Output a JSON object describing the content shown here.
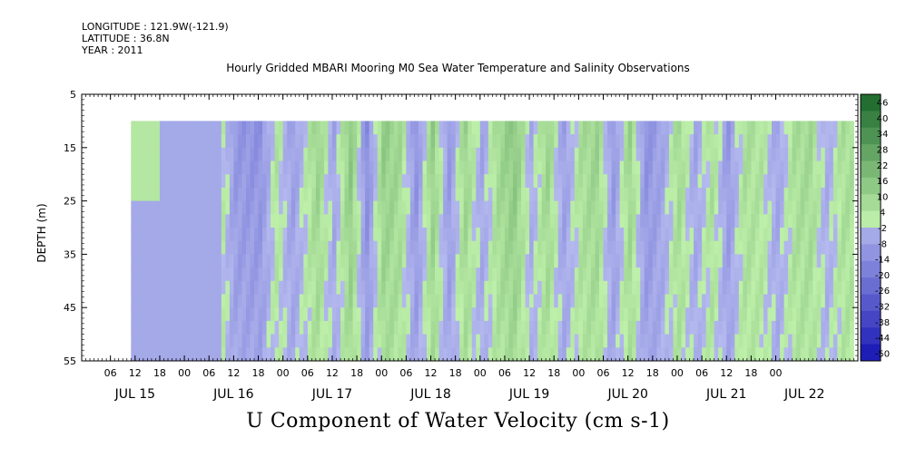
{
  "header": {
    "longitude": "LONGITUDE : 121.9W(-121.9)",
    "latitude": "LATITUDE : 36.8N",
    "year": "YEAR : 2011"
  },
  "chart_data": {
    "type": "heatmap",
    "title": "Hourly Gridded MBARI Mooring M0 Sea Water Temperature and Salinity Observations",
    "xlabel": "U Component of Water Velocity (cm s-1)",
    "ylabel": "DEPTH (m)",
    "xlim_hours": [
      -1,
      188
    ],
    "data_start_hours": [
      11,
      187
    ],
    "ylim": [
      5,
      55
    ],
    "depth_ticks": [
      5,
      15,
      25,
      35,
      45,
      55
    ],
    "data_depth_range": [
      10,
      55
    ],
    "hour_ticks": [
      {
        "hour": 6,
        "label": "06"
      },
      {
        "hour": 12,
        "label": "12"
      },
      {
        "hour": 18,
        "label": "18"
      },
      {
        "hour": 24,
        "label": "00"
      },
      {
        "hour": 30,
        "label": "06"
      },
      {
        "hour": 36,
        "label": "12"
      },
      {
        "hour": 42,
        "label": "18"
      },
      {
        "hour": 48,
        "label": "00"
      },
      {
        "hour": 54,
        "label": "06"
      },
      {
        "hour": 60,
        "label": "12"
      },
      {
        "hour": 66,
        "label": "18"
      },
      {
        "hour": 72,
        "label": "00"
      },
      {
        "hour": 78,
        "label": "06"
      },
      {
        "hour": 84,
        "label": "12"
      },
      {
        "hour": 90,
        "label": "18"
      },
      {
        "hour": 96,
        "label": "00"
      },
      {
        "hour": 102,
        "label": "06"
      },
      {
        "hour": 108,
        "label": "12"
      },
      {
        "hour": 114,
        "label": "18"
      },
      {
        "hour": 120,
        "label": "00"
      },
      {
        "hour": 126,
        "label": "06"
      },
      {
        "hour": 132,
        "label": "12"
      },
      {
        "hour": 138,
        "label": "18"
      },
      {
        "hour": 144,
        "label": "00"
      },
      {
        "hour": 150,
        "label": "06"
      },
      {
        "hour": 156,
        "label": "12"
      },
      {
        "hour": 162,
        "label": "18"
      },
      {
        "hour": 168,
        "label": "00"
      }
    ],
    "date_labels": [
      {
        "hour": 12,
        "label": "JUL 15"
      },
      {
        "hour": 36,
        "label": "JUL 16"
      },
      {
        "hour": 60,
        "label": "JUL 17"
      },
      {
        "hour": 84,
        "label": "JUL 18"
      },
      {
        "hour": 108,
        "label": "JUL 19"
      },
      {
        "hour": 132,
        "label": "JUL 20"
      },
      {
        "hour": 156,
        "label": "JUL 21"
      },
      {
        "hour": 175,
        "label": "JUL 22"
      }
    ],
    "colorbar": {
      "levels": [
        -50,
        -44,
        -38,
        -32,
        -26,
        -20,
        -14,
        -8,
        -2,
        4,
        10,
        16,
        22,
        28,
        34,
        40,
        46
      ],
      "labels": [
        "46",
        "40",
        "34",
        "28",
        "22",
        "16",
        "10",
        "4",
        "-2",
        "-8",
        "-14",
        "-20",
        "-26",
        "-32",
        "-38",
        "-44",
        "-50"
      ],
      "negative_color": "#2222bb",
      "positive_color": "#11aa33",
      "neutral_color": "#dcefc8"
    },
    "velocity_band_centers": [
      {
        "hour": 12,
        "value": 5
      },
      {
        "hour": 16,
        "value": 3
      },
      {
        "hour": 20,
        "value": -4
      },
      {
        "hour": 28,
        "value": 0
      },
      {
        "hour": 32,
        "value": 6
      },
      {
        "hour": 36,
        "value": -10
      },
      {
        "hour": 42,
        "value": -12
      },
      {
        "hour": 46,
        "value": 4
      },
      {
        "hour": 50,
        "value": -8
      },
      {
        "hour": 56,
        "value": 10
      },
      {
        "hour": 60,
        "value": -6
      },
      {
        "hour": 64,
        "value": 14
      },
      {
        "hour": 68,
        "value": -14
      },
      {
        "hour": 72,
        "value": 12
      },
      {
        "hour": 76,
        "value": 8
      },
      {
        "hour": 80,
        "value": -12
      },
      {
        "hour": 84,
        "value": 12
      },
      {
        "hour": 88,
        "value": -10
      },
      {
        "hour": 92,
        "value": 10
      },
      {
        "hour": 96,
        "value": -6
      },
      {
        "hour": 100,
        "value": 8
      },
      {
        "hour": 104,
        "value": 14
      },
      {
        "hour": 108,
        "value": -4
      },
      {
        "hour": 112,
        "value": 10
      },
      {
        "hour": 116,
        "value": -8
      },
      {
        "hour": 120,
        "value": 6
      },
      {
        "hour": 124,
        "value": 10
      },
      {
        "hour": 128,
        "value": -10
      },
      {
        "hour": 132,
        "value": 10
      },
      {
        "hour": 136,
        "value": -12
      },
      {
        "hour": 140,
        "value": -6
      },
      {
        "hour": 144,
        "value": 8
      },
      {
        "hour": 148,
        "value": -6
      },
      {
        "hour": 152,
        "value": 6
      },
      {
        "hour": 156,
        "value": -10
      },
      {
        "hour": 160,
        "value": 6
      },
      {
        "hour": 164,
        "value": 4
      },
      {
        "hour": 168,
        "value": -6
      },
      {
        "hour": 172,
        "value": 6
      },
      {
        "hour": 176,
        "value": 8
      },
      {
        "hour": 180,
        "value": -4
      },
      {
        "hour": 184,
        "value": 6
      }
    ]
  }
}
